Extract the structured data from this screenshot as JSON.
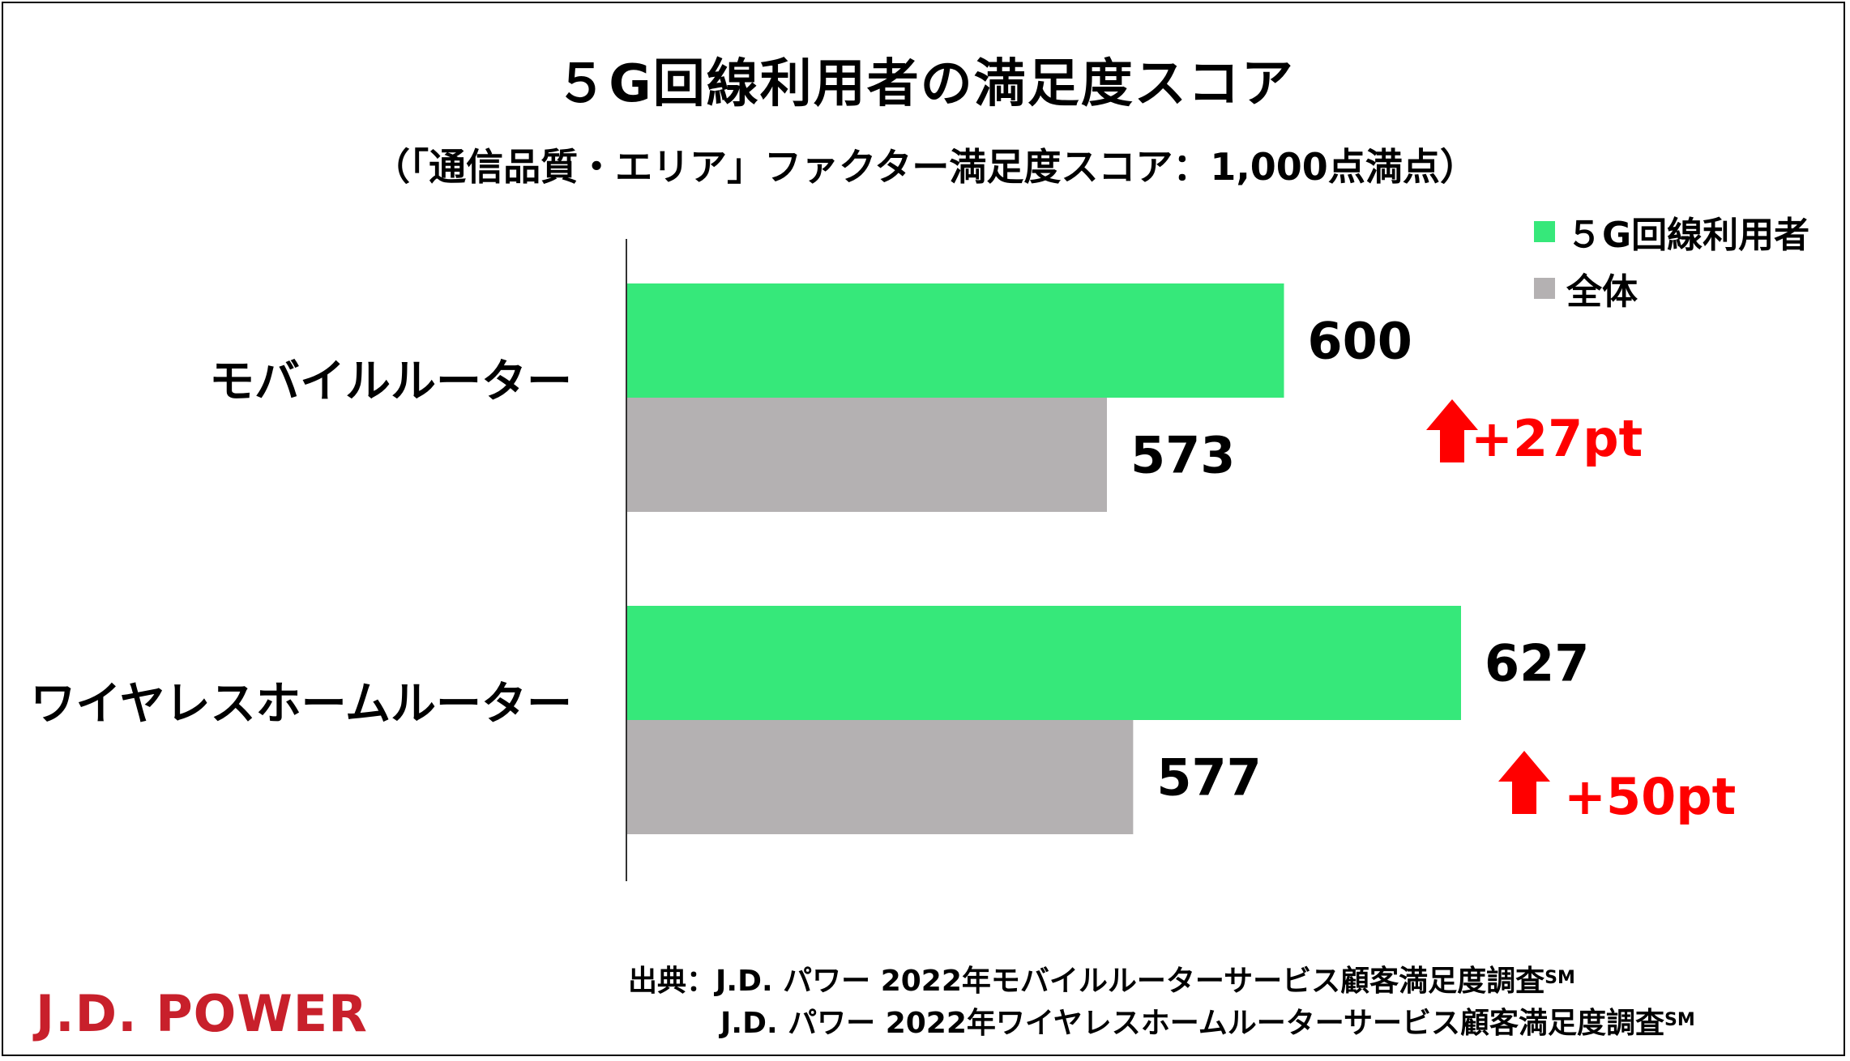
{
  "title": "５G回線利用者の満足度スコア",
  "subtitle": "（「通信品質・エリア」ファクター満足度スコア：1,000点満点）",
  "legend": [
    {
      "label": "５G回線利用者",
      "color": "#36e87a"
    },
    {
      "label": "全体",
      "color": "#b4b1b2"
    }
  ],
  "chart_data": {
    "type": "bar",
    "orientation": "horizontal",
    "categories": [
      "モバイルルーター",
      "ワイヤレスホームルーター"
    ],
    "series": [
      {
        "name": "５G回線利用者",
        "values": [
          600,
          627
        ],
        "color": "#36e87a"
      },
      {
        "name": "全体",
        "values": [
          573,
          577
        ],
        "color": "#b4b1b2"
      }
    ],
    "differences": [
      "+27pt",
      "+50pt"
    ],
    "difference_color": "#ff0000",
    "title": "５G回線利用者の満足度スコア",
    "subtitle": "（「通信品質・エリア」ファクター満足度スコア：1,000点満点）",
    "legend_position": "top-right",
    "grid": false
  },
  "source": {
    "line1_prefix": "出典：J.D. パワー 2022年モバイルルーターサービス顧客満足度調査",
    "line2_prefix": "J.D. パワー 2022年ワイヤレスホームルーターサービス顧客満足度調査",
    "superscript": "SM"
  },
  "brand": "J.D. POWER"
}
